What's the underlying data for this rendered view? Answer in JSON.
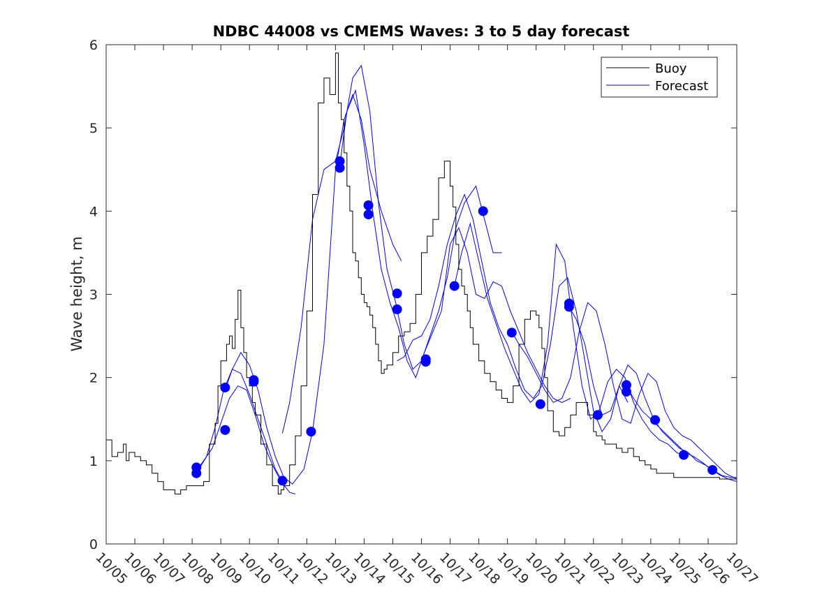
{
  "chart_data": {
    "type": "line",
    "title": "NDBC 44008 vs CMEMS Waves: 3 to 5 day forecast",
    "xlabel": "",
    "ylabel": "Wave height, m",
    "xlim": [
      0,
      22
    ],
    "ylim": [
      0,
      6
    ],
    "x_tick_labels": [
      "10/05",
      "10/06",
      "10/07",
      "10/08",
      "10/09",
      "10/10",
      "10/11",
      "10/12",
      "10/13",
      "10/14",
      "10/15",
      "10/16",
      "10/17",
      "10/18",
      "10/19",
      "10/20",
      "10/21",
      "10/22",
      "10/23",
      "10/24",
      "10/25",
      "10/26",
      "10/27"
    ],
    "y_ticks": [
      0,
      1,
      2,
      3,
      4,
      5,
      6
    ],
    "legend": {
      "location": "top-right",
      "entries": [
        "Buoy",
        "Forecast"
      ]
    },
    "colors": {
      "buoy": "#000000",
      "forecast": "#0000ff",
      "markers": "#0000ff"
    },
    "series": [
      {
        "name": "Buoy",
        "x": [
          0,
          0.2,
          0.4,
          0.6,
          0.7,
          0.8,
          1.0,
          1.2,
          1.4,
          1.6,
          1.8,
          2.0,
          2.2,
          2.4,
          2.6,
          2.8,
          3.0,
          3.2,
          3.4,
          3.6,
          3.8,
          3.9,
          4.0,
          4.2,
          4.3,
          4.4,
          4.5,
          4.6,
          4.7,
          4.8,
          4.9,
          5.0,
          5.1,
          5.2,
          5.4,
          5.6,
          5.8,
          6.0,
          6.1,
          6.2,
          6.4,
          6.6,
          6.8,
          7.0,
          7.2,
          7.4,
          7.6,
          7.8,
          8.0,
          8.1,
          8.2,
          8.3,
          8.4,
          8.5,
          8.6,
          8.7,
          8.8,
          8.9,
          9.0,
          9.1,
          9.2,
          9.3,
          9.4,
          9.5,
          9.6,
          9.7,
          9.8,
          10.0,
          10.2,
          10.4,
          10.6,
          10.8,
          11.0,
          11.2,
          11.4,
          11.6,
          11.8,
          12.0,
          12.1,
          12.2,
          12.3,
          12.4,
          12.5,
          12.6,
          12.7,
          12.8,
          13.0,
          13.2,
          13.4,
          13.6,
          13.8,
          14.0,
          14.2,
          14.4,
          14.6,
          14.8,
          15.0,
          15.1,
          15.2,
          15.3,
          15.4,
          15.6,
          15.8,
          16.0,
          16.2,
          16.4,
          16.6,
          16.8,
          17.0,
          17.1,
          17.2,
          17.3,
          17.4,
          17.6,
          17.8,
          18.0,
          18.2,
          18.4,
          18.6,
          18.8,
          19.0,
          19.2,
          19.4,
          19.6,
          19.8,
          20.0,
          20.2,
          20.4,
          20.6,
          20.8,
          21.0,
          21.2,
          21.4,
          21.6,
          21.8,
          22.0
        ],
        "y": [
          1.25,
          1.05,
          1.1,
          1.2,
          1.0,
          1.1,
          1.05,
          1.0,
          0.95,
          0.85,
          0.75,
          0.65,
          0.65,
          0.6,
          0.65,
          0.7,
          0.7,
          0.7,
          0.75,
          1.2,
          1.45,
          1.9,
          2.2,
          2.4,
          2.5,
          2.35,
          2.7,
          3.05,
          2.6,
          2.3,
          2.0,
          1.9,
          1.7,
          1.55,
          1.2,
          0.95,
          0.7,
          0.6,
          0.65,
          0.7,
          0.95,
          1.3,
          1.9,
          2.8,
          4.2,
          5.3,
          5.6,
          5.4,
          5.9,
          5.3,
          5.1,
          4.7,
          4.3,
          4.0,
          3.5,
          3.4,
          3.2,
          3.0,
          2.9,
          2.85,
          2.75,
          2.6,
          2.4,
          2.2,
          2.05,
          2.1,
          2.15,
          2.3,
          2.5,
          2.55,
          2.65,
          3.0,
          3.5,
          3.7,
          3.9,
          4.4,
          4.6,
          4.3,
          4.05,
          3.6,
          3.3,
          3.1,
          3.0,
          2.8,
          2.6,
          2.4,
          2.2,
          2.05,
          1.95,
          1.85,
          1.75,
          1.7,
          1.9,
          2.4,
          2.7,
          2.8,
          2.75,
          2.6,
          2.35,
          2.0,
          1.6,
          1.35,
          1.3,
          1.4,
          1.55,
          1.7,
          1.7,
          1.55,
          1.35,
          1.3,
          1.3,
          1.25,
          1.2,
          1.2,
          1.15,
          1.1,
          1.15,
          1.05,
          1.0,
          0.95,
          0.9,
          0.85,
          0.85,
          0.85,
          0.8,
          0.8,
          0.8,
          0.8,
          0.8,
          0.8,
          0.8,
          0.8,
          0.78,
          0.78,
          0.78,
          0.78
        ]
      },
      {
        "name": "Forecast",
        "runs": [
          {
            "x": [
              3.15,
              3.4,
              3.7,
              4.0,
              4.3,
              4.6,
              4.9,
              5.2,
              5.5,
              5.8,
              6.1,
              6.4,
              6.6
            ],
            "y": [
              0.88,
              1.0,
              1.15,
              1.45,
              1.75,
              1.9,
              1.85,
              1.55,
              1.2,
              0.95,
              0.75,
              0.62,
              0.6
            ]
          },
          {
            "x": [
              3.15,
              3.5,
              3.8,
              4.1,
              4.4,
              4.7,
              5.0,
              5.3,
              5.6,
              5.9,
              6.2
            ],
            "y": [
              0.85,
              1.05,
              1.4,
              1.85,
              2.1,
              2.05,
              1.8,
              1.5,
              1.2,
              0.9,
              0.72
            ]
          },
          {
            "x": [
              4.15,
              4.4,
              4.7,
              5.0,
              5.3,
              5.6,
              5.9,
              6.2,
              6.5,
              6.9,
              7.2,
              7.6,
              8.0,
              8.3,
              8.6,
              8.9,
              9.2,
              9.6,
              10.0,
              10.3
            ],
            "y": [
              1.85,
              2.1,
              2.3,
              2.15,
              1.85,
              1.4,
              1.05,
              0.8,
              0.72,
              0.9,
              1.35,
              2.4,
              4.5,
              5.1,
              5.4,
              5.1,
              4.5,
              4.0,
              3.6,
              3.4
            ]
          },
          {
            "x": [
              6.15,
              6.4,
              6.8,
              7.2,
              7.6,
              8.0,
              8.3,
              8.6,
              8.9,
              9.2,
              9.5,
              9.8,
              10.1,
              10.4,
              10.7,
              11.0,
              11.3,
              11.6,
              11.9,
              12.2,
              12.5,
              12.9,
              13.2,
              13.5,
              13.8
            ],
            "y": [
              1.33,
              1.7,
              2.6,
              3.9,
              4.5,
              4.6,
              5.0,
              5.6,
              5.75,
              5.2,
              4.1,
              3.3,
              2.9,
              2.4,
              2.1,
              2.2,
              2.5,
              2.8,
              3.2,
              3.8,
              4.1,
              4.3,
              3.9,
              3.5,
              3.5
            ]
          },
          {
            "x": [
              8.15,
              8.4,
              8.7,
              9.0,
              9.3,
              9.6,
              9.9,
              10.2,
              10.5,
              10.8,
              11.1,
              11.4,
              11.7,
              12.0,
              12.3,
              12.6,
              12.9,
              13.2,
              13.5,
              13.8,
              14.1,
              14.4,
              14.7,
              15.0,
              15.3,
              15.6,
              15.9,
              16.2
            ],
            "y": [
              4.55,
              5.2,
              5.45,
              4.8,
              4.0,
              3.3,
              2.9,
              2.6,
              2.2,
              2.0,
              2.3,
              2.55,
              2.8,
              3.6,
              3.8,
              3.5,
              3.0,
              2.95,
              3.15,
              3.1,
              2.8,
              2.55,
              2.3,
              2.1,
              1.9,
              1.75,
              1.7,
              1.75
            ]
          },
          {
            "x": [
              10.15,
              10.4,
              10.7,
              11.0,
              11.3,
              11.6,
              11.9,
              12.2,
              12.5,
              12.8,
              13.1,
              13.4,
              13.7,
              14.0,
              14.3,
              14.6,
              14.9,
              15.2,
              15.5,
              15.8,
              16.1,
              16.4,
              16.7,
              17.0,
              17.3,
              17.6,
              17.9,
              18.2
            ],
            "y": [
              2.2,
              2.25,
              2.45,
              2.5,
              2.7,
              3.1,
              3.6,
              3.95,
              4.2,
              3.9,
              3.4,
              2.9,
              2.6,
              2.4,
              2.1,
              1.85,
              1.75,
              1.9,
              2.4,
              3.1,
              3.2,
              2.8,
              2.2,
              1.6,
              1.35,
              1.5,
              1.9,
              1.7
            ]
          },
          {
            "x": [
              12.15,
              12.4,
              12.7,
              13.0,
              13.3,
              13.6,
              13.9,
              14.2,
              14.5,
              14.8,
              15.1,
              15.4,
              15.7,
              16.0,
              16.3,
              16.6,
              16.9,
              17.2,
              17.5,
              17.8,
              18.1,
              18.4,
              18.7,
              19.0,
              19.3,
              19.6,
              19.9,
              20.2
            ],
            "y": [
              3.1,
              3.5,
              3.85,
              3.4,
              2.95,
              2.65,
              2.35,
              2.1,
              1.85,
              1.7,
              1.8,
              2.4,
              3.6,
              3.4,
              2.6,
              1.9,
              1.5,
              1.6,
              1.95,
              2.1,
              2.0,
              1.7,
              1.5,
              1.35,
              1.25,
              1.2,
              1.1,
              1.05
            ]
          },
          {
            "x": [
              14.15,
              14.4,
              14.7,
              15.0,
              15.3,
              15.6,
              15.9,
              16.2,
              16.5,
              16.8,
              17.1,
              17.4,
              17.7,
              18.0,
              18.3,
              18.6,
              18.9,
              19.2,
              19.5,
              19.8,
              20.1,
              20.4,
              20.7,
              21.0,
              21.3,
              21.6,
              22.0
            ],
            "y": [
              2.55,
              2.4,
              2.25,
              2.05,
              1.85,
              1.7,
              1.75,
              2.0,
              2.55,
              2.9,
              2.8,
              2.4,
              1.9,
              1.5,
              1.45,
              1.8,
              2.05,
              1.95,
              1.6,
              1.4,
              1.3,
              1.25,
              1.15,
              1.05,
              0.95,
              0.85,
              0.78
            ]
          },
          {
            "x": [
              16.15,
              16.4,
              16.7,
              17.0,
              17.3,
              17.6,
              17.9,
              18.2,
              18.5,
              18.8,
              19.1,
              19.4,
              19.7,
              20.0,
              20.3,
              20.6,
              20.9,
              21.2,
              21.5,
              21.8,
              22.0
            ],
            "y": [
              2.85,
              2.7,
              2.4,
              1.9,
              1.55,
              1.6,
              1.9,
              2.15,
              2.05,
              1.75,
              1.5,
              1.35,
              1.25,
              1.15,
              1.1,
              1.0,
              0.95,
              0.88,
              0.82,
              0.8,
              0.8
            ]
          },
          {
            "x": [
              18.15,
              18.4,
              18.7,
              19.0,
              19.3,
              19.6,
              19.9,
              20.2,
              20.5,
              20.8,
              21.1,
              21.4,
              21.7,
              22.0
            ],
            "y": [
              1.9,
              1.75,
              1.6,
              1.5,
              1.4,
              1.3,
              1.2,
              1.1,
              1.05,
              0.98,
              0.9,
              0.83,
              0.78,
              0.75
            ]
          }
        ]
      },
      {
        "name": "Forecast markers",
        "x": [
          3.15,
          3.15,
          4.15,
          4.15,
          5.15,
          5.15,
          6.15,
          7.15,
          8.15,
          8.15,
          9.15,
          9.15,
          10.15,
          10.15,
          11.15,
          11.15,
          12.15,
          13.15,
          14.15,
          15.15,
          16.15,
          16.15,
          17.15,
          18.15,
          18.15,
          19.15,
          20.15,
          21.15
        ],
        "y": [
          0.92,
          0.85,
          1.88,
          1.37,
          1.97,
          1.95,
          0.76,
          1.35,
          4.6,
          4.52,
          4.07,
          3.96,
          3.01,
          2.82,
          2.22,
          2.19,
          3.1,
          4.0,
          2.54,
          1.68,
          2.89,
          2.85,
          1.55,
          1.91,
          1.83,
          1.49,
          1.07,
          0.89
        ]
      }
    ]
  }
}
